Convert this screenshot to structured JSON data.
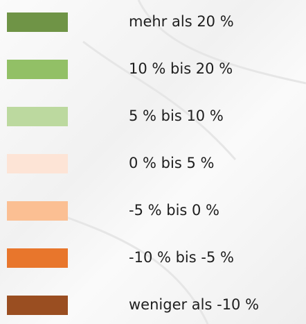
{
  "legend": {
    "items": [
      {
        "label": "mehr als 20 %",
        "color": "#6f9446"
      },
      {
        "label": "10 % bis 20 %",
        "color": "#92c066"
      },
      {
        "label": "5 % bis 10 %",
        "color": "#bcd99f"
      },
      {
        "label": "0 % bis 5 %",
        "color": "#fde4d6"
      },
      {
        "label": "-5 % bis 0 %",
        "color": "#fbbf93"
      },
      {
        "label": "-10 % bis -5 %",
        "color": "#e8762c"
      },
      {
        "label": "weniger als -10 %",
        "color": "#9a4e21"
      }
    ]
  }
}
